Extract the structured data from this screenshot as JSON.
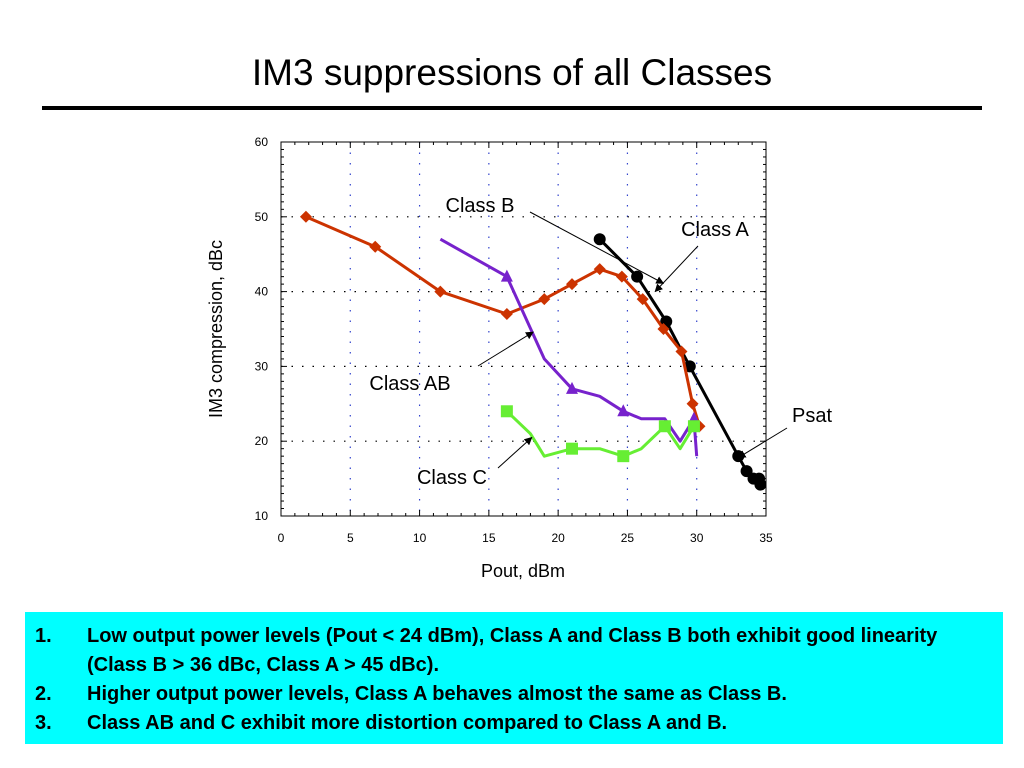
{
  "slide": {
    "title": "IM3 suppressions of all Classes"
  },
  "chart_data": {
    "type": "line",
    "title": "",
    "xlabel": "Pout, dBm",
    "ylabel": "IM3 compression, dBc",
    "xlim": [
      0,
      35
    ],
    "ylim": [
      10,
      60
    ],
    "xticks": [
      0,
      5,
      10,
      15,
      20,
      25,
      30,
      35
    ],
    "yticks": [
      10,
      20,
      30,
      40,
      50,
      60
    ],
    "grid": true,
    "series": [
      {
        "name": "Class A",
        "color": "#000000",
        "marker": "circle",
        "x": [
          23,
          25.7,
          27.8,
          29.5,
          33,
          33.6,
          34.1,
          34.5,
          34.6
        ],
        "y": [
          47,
          42,
          36,
          30,
          18,
          16,
          15,
          15,
          14.2
        ]
      },
      {
        "name": "Class B",
        "color": "#cc3300",
        "marker": "diamond",
        "x": [
          1.8,
          6.8,
          11.5,
          16.3,
          19,
          21,
          23,
          24.6,
          26.1,
          27.6,
          28.9,
          29.7,
          30.2
        ],
        "y": [
          50,
          46,
          40,
          37,
          39,
          41,
          43,
          42,
          39,
          35,
          32,
          25,
          22
        ]
      },
      {
        "name": "Class AB",
        "color": "#7722cc",
        "marker": "triangle",
        "x": [
          11.5,
          16.3,
          19,
          21,
          23,
          24.7,
          26,
          27.7,
          28.8,
          29.8,
          30
        ],
        "y": [
          47,
          42,
          31,
          27,
          26,
          24,
          23,
          23,
          20,
          23,
          18
        ],
        "marked": [
          false,
          true,
          false,
          true,
          false,
          true,
          false,
          false,
          false,
          true,
          false
        ]
      },
      {
        "name": "Class C",
        "color": "#66ee33",
        "marker": "square",
        "x": [
          16.3,
          18,
          19,
          21,
          23,
          24.7,
          26,
          27.7,
          28.8,
          29.8
        ],
        "y": [
          24,
          21,
          18,
          19,
          19,
          18,
          19,
          22,
          19,
          22
        ],
        "marked": [
          true,
          false,
          false,
          true,
          false,
          true,
          false,
          true,
          false,
          true
        ]
      }
    ],
    "annotations": [
      {
        "text": "Class B",
        "target": [
          27.6,
          41.1
        ]
      },
      {
        "text": "Class A",
        "target": [
          27,
          40
        ]
      },
      {
        "text": "Class AB",
        "target": [
          18.2,
          34.6
        ]
      },
      {
        "text": "Class C",
        "target": [
          18.1,
          20.5
        ]
      },
      {
        "text": "Psat",
        "target": [
          33,
          17.8
        ]
      }
    ]
  },
  "notes": [
    {
      "num": "1.",
      "text": "Low output power levels (Pout < 24 dBm), Class A and Class B both exhibit good linearity (Class B > 36 dBc, Class A > 45 dBc)."
    },
    {
      "num": "2.",
      "text": "Higher output power levels, Class A behaves almost the same as Class B."
    },
    {
      "num": "3.",
      "text": "Class AB and C exhibit more distortion compared to Class A and B."
    }
  ]
}
